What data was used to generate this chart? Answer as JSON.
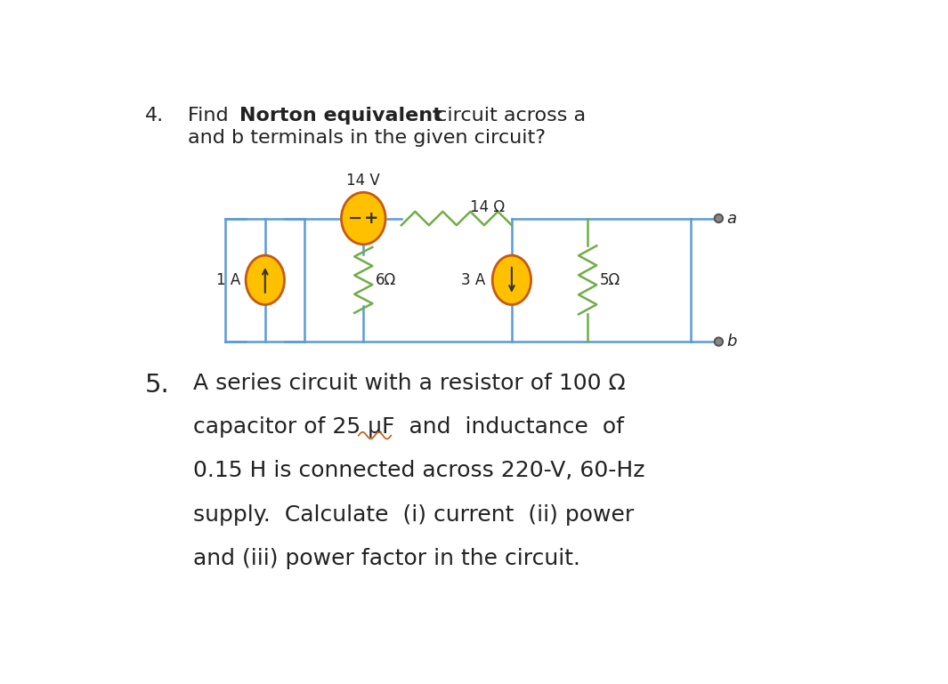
{
  "bg_color": "#ffffff",
  "line_color": "#5b9bd5",
  "resistor_color": "#70ad47",
  "source_fill": "#ffc000",
  "source_border": "#c55a11",
  "text_color": "#000000",
  "terminal_dot_color": "#808080",
  "q4_number": "4.",
  "q4_line2": "and b terminals in the given circuit?",
  "voltage_label": "14 V",
  "r1_label": "14 Ω",
  "r2_label": "6Ω",
  "r3_label": "5Ω",
  "cs1_label": "1 A",
  "cs2_label": "3 A",
  "terminal_a": "a",
  "terminal_b": "b",
  "q5_number": "5.",
  "q5_line1": "A series circuit with a resistor of 100 Ω",
  "q5_line2": "capacitor of 25 μF  and  inductance  of",
  "q5_line3": "0.15 H is connected across 220-V, 60-Hz",
  "q5_line4": "supply.  Calculate  (i) current  (ii) power",
  "q5_line5": "and (iii) power factor in the circuit."
}
